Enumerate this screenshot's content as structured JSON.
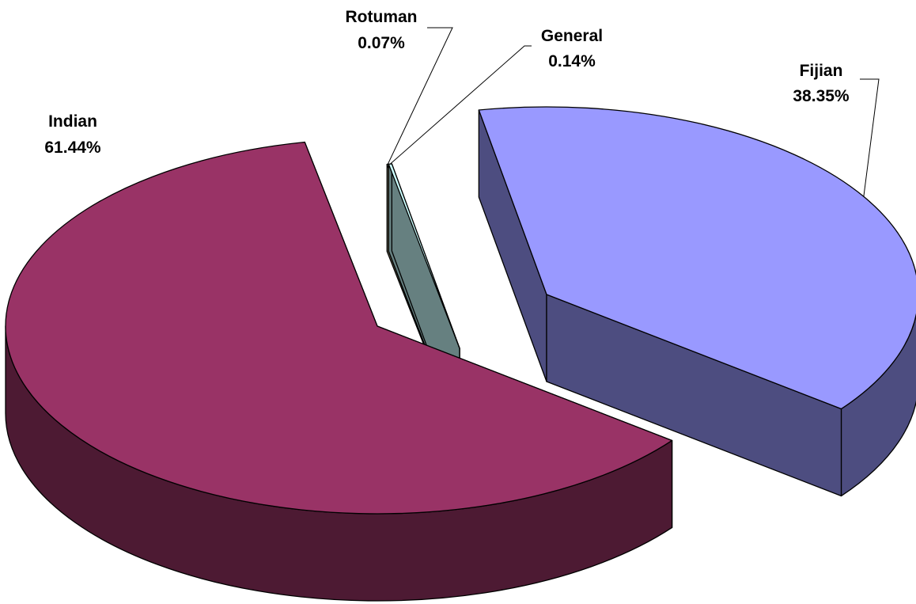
{
  "chart_data": {
    "type": "pie",
    "title": "",
    "series": [
      {
        "name": "Fijian",
        "value": 38.35,
        "label": "38.35%",
        "color": "#9999FF",
        "side_color": "#4D4D80"
      },
      {
        "name": "Indian",
        "value": 61.44,
        "label": "61.44%",
        "color": "#993366",
        "side_color": "#4D1A33"
      },
      {
        "name": "Rotuman",
        "value": 0.07,
        "label": "0.07%",
        "color": "#FFFFCC",
        "side_color": "#808066"
      },
      {
        "name": "General",
        "value": 0.14,
        "label": "0.14%",
        "color": "#CCFFFF",
        "side_color": "#668080"
      }
    ],
    "style": "3d-exploded",
    "legend": "none",
    "data_labels": "category-and-percent"
  }
}
